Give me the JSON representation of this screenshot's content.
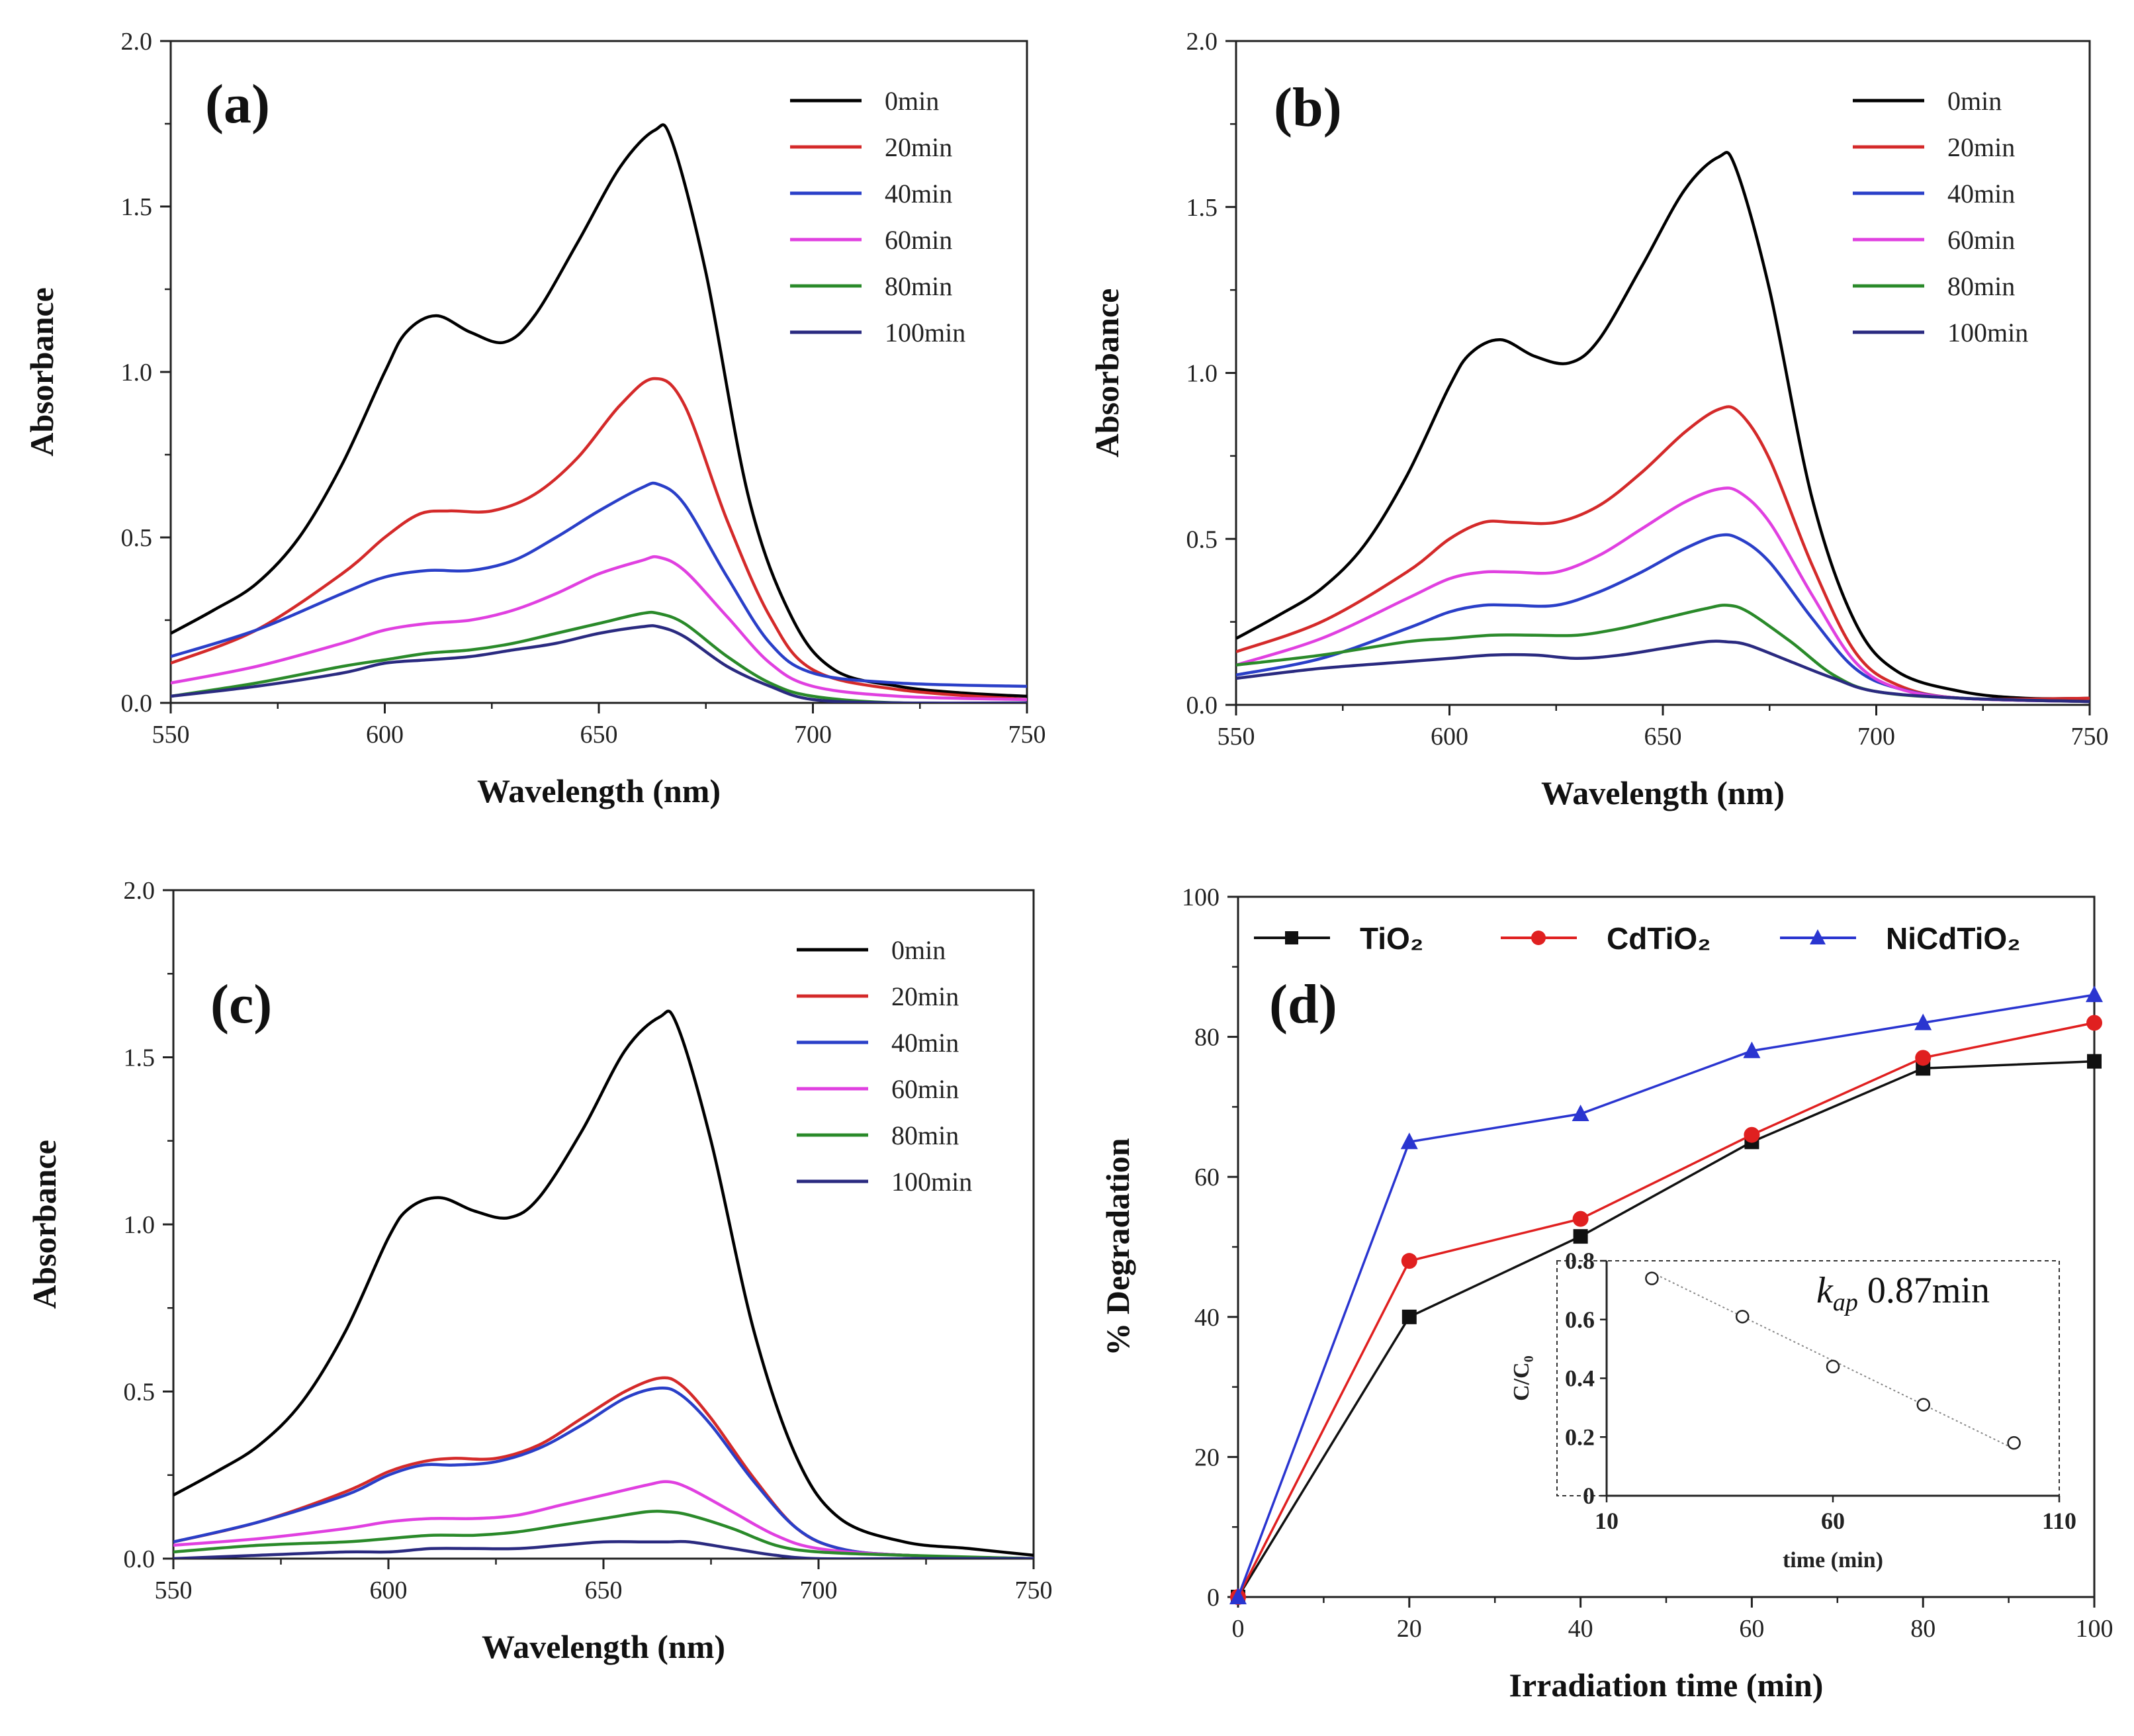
{
  "chart_data": [
    {
      "type": "line",
      "id": "a",
      "panel_label": "(a)",
      "xlabel": "Wavelength (nm)",
      "ylabel": "Absorbance",
      "xlim": [
        550,
        750
      ],
      "ylim": [
        0.0,
        2.0
      ],
      "xticks": [
        "550",
        "600",
        "650",
        "700",
        "750"
      ],
      "yticks": [
        "0.0",
        "0.5",
        "1.0",
        "1.5",
        "2.0"
      ],
      "legend_position": "top-right",
      "series": [
        {
          "name": "0min",
          "color": "#000000",
          "x": [
            550,
            560,
            570,
            580,
            590,
            600,
            605,
            612,
            620,
            628,
            635,
            645,
            655,
            663,
            667,
            675,
            685,
            695,
            705,
            720,
            735,
            750
          ],
          "values": [
            0.21,
            0.28,
            0.36,
            0.5,
            0.72,
            1.0,
            1.12,
            1.17,
            1.12,
            1.09,
            1.17,
            1.39,
            1.62,
            1.73,
            1.7,
            1.3,
            0.62,
            0.26,
            0.1,
            0.05,
            0.03,
            0.02
          ]
        },
        {
          "name": "20min",
          "color": "#d42a2a",
          "x": [
            550,
            570,
            590,
            600,
            608,
            615,
            625,
            635,
            645,
            655,
            663,
            670,
            680,
            690,
            700,
            720,
            750
          ],
          "values": [
            0.12,
            0.22,
            0.39,
            0.5,
            0.57,
            0.58,
            0.58,
            0.63,
            0.74,
            0.9,
            0.98,
            0.9,
            0.55,
            0.26,
            0.1,
            0.04,
            0.01
          ]
        },
        {
          "name": "40min",
          "color": "#2a3fc8",
          "x": [
            550,
            570,
            590,
            600,
            610,
            620,
            630,
            640,
            650,
            660,
            664,
            670,
            680,
            690,
            700,
            720,
            750
          ],
          "values": [
            0.14,
            0.22,
            0.33,
            0.38,
            0.4,
            0.4,
            0.43,
            0.5,
            0.58,
            0.65,
            0.66,
            0.6,
            0.38,
            0.18,
            0.09,
            0.06,
            0.05
          ]
        },
        {
          "name": "60min",
          "color": "#e040e0",
          "x": [
            550,
            570,
            590,
            600,
            610,
            620,
            630,
            640,
            650,
            660,
            664,
            670,
            680,
            690,
            700,
            720,
            750
          ],
          "values": [
            0.06,
            0.11,
            0.18,
            0.22,
            0.24,
            0.25,
            0.28,
            0.33,
            0.39,
            0.43,
            0.44,
            0.4,
            0.26,
            0.12,
            0.05,
            0.02,
            0.01
          ]
        },
        {
          "name": "80min",
          "color": "#2a8a2a",
          "x": [
            550,
            570,
            590,
            600,
            610,
            620,
            630,
            640,
            650,
            660,
            664,
            670,
            680,
            690,
            700,
            720,
            750
          ],
          "values": [
            0.02,
            0.06,
            0.11,
            0.13,
            0.15,
            0.16,
            0.18,
            0.21,
            0.24,
            0.27,
            0.27,
            0.24,
            0.14,
            0.06,
            0.02,
            0.0,
            0.0
          ]
        },
        {
          "name": "100min",
          "color": "#2a2a80",
          "x": [
            550,
            570,
            590,
            600,
            610,
            620,
            630,
            640,
            650,
            660,
            664,
            670,
            680,
            690,
            700,
            720,
            750
          ],
          "values": [
            0.02,
            0.05,
            0.09,
            0.12,
            0.13,
            0.14,
            0.16,
            0.18,
            0.21,
            0.23,
            0.23,
            0.2,
            0.11,
            0.05,
            0.01,
            0.0,
            0.0
          ]
        }
      ]
    },
    {
      "type": "line",
      "id": "b",
      "panel_label": "(b)",
      "xlabel": "Wavelength (nm)",
      "ylabel": "Absorbance",
      "xlim": [
        550,
        750
      ],
      "ylim": [
        0.0,
        2.0
      ],
      "xticks": [
        "550",
        "600",
        "650",
        "700",
        "750"
      ],
      "yticks": [
        "0.0",
        "0.5",
        "1.0",
        "1.5",
        "2.0"
      ],
      "legend_position": "top-right",
      "series": [
        {
          "name": "0min",
          "color": "#000000",
          "x": [
            550,
            560,
            570,
            580,
            590,
            600,
            605,
            612,
            620,
            628,
            635,
            645,
            655,
            663,
            667,
            675,
            685,
            695,
            705,
            720,
            735,
            750
          ],
          "values": [
            0.2,
            0.27,
            0.35,
            0.48,
            0.69,
            0.96,
            1.06,
            1.1,
            1.05,
            1.03,
            1.1,
            1.32,
            1.55,
            1.65,
            1.62,
            1.25,
            0.62,
            0.25,
            0.1,
            0.04,
            0.02,
            0.02
          ]
        },
        {
          "name": "20min",
          "color": "#d42a2a",
          "x": [
            550,
            570,
            590,
            600,
            608,
            615,
            625,
            635,
            645,
            655,
            663,
            668,
            675,
            685,
            695,
            705,
            720,
            750
          ],
          "values": [
            0.16,
            0.25,
            0.4,
            0.5,
            0.55,
            0.55,
            0.55,
            0.6,
            0.7,
            0.82,
            0.89,
            0.88,
            0.74,
            0.42,
            0.16,
            0.06,
            0.02,
            0.02
          ]
        },
        {
          "name": "40min",
          "color": "#2a3fc8",
          "x": [
            550,
            570,
            590,
            600,
            608,
            615,
            625,
            635,
            645,
            655,
            663,
            668,
            675,
            685,
            695,
            705,
            720,
            750
          ],
          "values": [
            0.09,
            0.14,
            0.23,
            0.28,
            0.3,
            0.3,
            0.3,
            0.34,
            0.4,
            0.47,
            0.51,
            0.5,
            0.43,
            0.26,
            0.11,
            0.05,
            0.02,
            0.01
          ]
        },
        {
          "name": "60min",
          "color": "#e040e0",
          "x": [
            550,
            570,
            590,
            600,
            608,
            615,
            625,
            635,
            645,
            655,
            663,
            668,
            675,
            685,
            695,
            705,
            720,
            750
          ],
          "values": [
            0.12,
            0.2,
            0.32,
            0.38,
            0.4,
            0.4,
            0.4,
            0.45,
            0.53,
            0.61,
            0.65,
            0.64,
            0.55,
            0.33,
            0.13,
            0.05,
            0.02,
            0.01
          ]
        },
        {
          "name": "80min",
          "color": "#2a8a2a",
          "x": [
            550,
            570,
            590,
            600,
            610,
            620,
            630,
            640,
            650,
            660,
            665,
            670,
            680,
            690,
            700,
            720,
            750
          ],
          "values": [
            0.12,
            0.15,
            0.19,
            0.2,
            0.21,
            0.21,
            0.21,
            0.23,
            0.26,
            0.29,
            0.3,
            0.28,
            0.19,
            0.09,
            0.04,
            0.02,
            0.01
          ]
        },
        {
          "name": "100min",
          "color": "#2a2a80",
          "x": [
            550,
            570,
            590,
            600,
            610,
            620,
            630,
            640,
            650,
            660,
            665,
            670,
            680,
            690,
            700,
            720,
            750
          ],
          "values": [
            0.08,
            0.11,
            0.13,
            0.14,
            0.15,
            0.15,
            0.14,
            0.15,
            0.17,
            0.19,
            0.19,
            0.18,
            0.13,
            0.08,
            0.04,
            0.02,
            0.01
          ]
        }
      ]
    },
    {
      "type": "line",
      "id": "c",
      "panel_label": "(c)",
      "xlabel": "Wavelength (nm)",
      "ylabel": "Absorbance",
      "xlim": [
        550,
        750
      ],
      "ylim": [
        0.0,
        2.0
      ],
      "xticks": [
        "550",
        "600",
        "650",
        "700",
        "750"
      ],
      "yticks": [
        "0.0",
        "0.5",
        "1.0",
        "1.5",
        "2.0"
      ],
      "legend_position": "top-right",
      "series": [
        {
          "name": "0min",
          "color": "#000000",
          "x": [
            550,
            560,
            570,
            580,
            590,
            600,
            605,
            612,
            620,
            628,
            635,
            645,
            655,
            663,
            667,
            675,
            685,
            695,
            705,
            720,
            735,
            750
          ],
          "values": [
            0.19,
            0.26,
            0.34,
            0.47,
            0.68,
            0.96,
            1.05,
            1.08,
            1.04,
            1.02,
            1.08,
            1.28,
            1.52,
            1.62,
            1.6,
            1.25,
            0.68,
            0.3,
            0.12,
            0.05,
            0.03,
            0.01
          ]
        },
        {
          "name": "20min",
          "color": "#d42a2a",
          "x": [
            550,
            570,
            590,
            600,
            608,
            615,
            625,
            635,
            645,
            655,
            663,
            668,
            675,
            685,
            695,
            705,
            720,
            750
          ],
          "values": [
            0.05,
            0.11,
            0.2,
            0.26,
            0.29,
            0.3,
            0.3,
            0.34,
            0.42,
            0.5,
            0.54,
            0.52,
            0.42,
            0.24,
            0.09,
            0.03,
            0.01,
            0.0
          ]
        },
        {
          "name": "40min",
          "color": "#2a3fc8",
          "x": [
            550,
            570,
            590,
            600,
            608,
            615,
            625,
            635,
            645,
            655,
            663,
            668,
            675,
            685,
            695,
            705,
            720,
            750
          ],
          "values": [
            0.05,
            0.11,
            0.19,
            0.25,
            0.28,
            0.28,
            0.29,
            0.33,
            0.4,
            0.48,
            0.51,
            0.49,
            0.4,
            0.23,
            0.09,
            0.03,
            0.01,
            0.0
          ]
        },
        {
          "name": "60min",
          "color": "#e040e0",
          "x": [
            550,
            570,
            590,
            600,
            610,
            620,
            630,
            640,
            650,
            660,
            665,
            670,
            680,
            690,
            700,
            720,
            750
          ],
          "values": [
            0.04,
            0.06,
            0.09,
            0.11,
            0.12,
            0.12,
            0.13,
            0.16,
            0.19,
            0.22,
            0.23,
            0.21,
            0.14,
            0.07,
            0.03,
            0.01,
            0.0
          ]
        },
        {
          "name": "80min",
          "color": "#2a8a2a",
          "x": [
            550,
            570,
            590,
            600,
            610,
            620,
            630,
            640,
            650,
            660,
            665,
            670,
            680,
            690,
            700,
            720,
            750
          ],
          "values": [
            0.02,
            0.04,
            0.05,
            0.06,
            0.07,
            0.07,
            0.08,
            0.1,
            0.12,
            0.14,
            0.14,
            0.13,
            0.09,
            0.04,
            0.02,
            0.01,
            0.0
          ]
        },
        {
          "name": "100min",
          "color": "#2a2a80",
          "x": [
            550,
            570,
            590,
            600,
            610,
            620,
            630,
            640,
            650,
            660,
            665,
            670,
            680,
            690,
            700,
            720,
            750
          ],
          "values": [
            0.0,
            0.01,
            0.02,
            0.02,
            0.03,
            0.03,
            0.03,
            0.04,
            0.05,
            0.05,
            0.05,
            0.05,
            0.03,
            0.01,
            0.0,
            0.0,
            0.0
          ]
        }
      ]
    },
    {
      "type": "line",
      "id": "d",
      "panel_label": "(d)",
      "xlabel": "Irradiation time (min)",
      "ylabel": "% Degradation",
      "xlim": [
        0,
        100
      ],
      "ylim": [
        0,
        100
      ],
      "xticks": [
        "0",
        "20",
        "40",
        "60",
        "80",
        "100"
      ],
      "yticks": [
        "0",
        "20",
        "40",
        "60",
        "80",
        "100"
      ],
      "legend_position": "top",
      "x": [
        0,
        20,
        40,
        60,
        80,
        100
      ],
      "series": [
        {
          "name": "TiO₂",
          "color": "#111111",
          "marker": "square",
          "values": [
            0,
            40,
            51.5,
            65,
            75.5,
            76.5
          ]
        },
        {
          "name": "CdTiO₂",
          "color": "#e02020",
          "marker": "circle",
          "values": [
            0,
            48,
            54,
            66,
            77,
            82
          ]
        },
        {
          "name": "NiCdTiO₂",
          "color": "#2a35d0",
          "marker": "triangle",
          "values": [
            0,
            65,
            69,
            78,
            82,
            86
          ]
        }
      ],
      "inset": {
        "type": "scatter",
        "xlabel": "time (min)",
        "ylabel": "C/C₀",
        "xlim": [
          10,
          110
        ],
        "ylim": [
          0,
          0.8
        ],
        "xticks": [
          "10",
          "60",
          "110"
        ],
        "yticks": [
          "0",
          "0.2",
          "0.4",
          "0.6",
          "0.8"
        ],
        "annotation_k": "k",
        "annotation_sub": "ap",
        "annotation_value": " 0.87min",
        "x": [
          20,
          40,
          60,
          80,
          100
        ],
        "values": [
          0.74,
          0.61,
          0.44,
          0.31,
          0.18
        ],
        "fit": [
          0.76,
          0.16
        ]
      }
    }
  ]
}
